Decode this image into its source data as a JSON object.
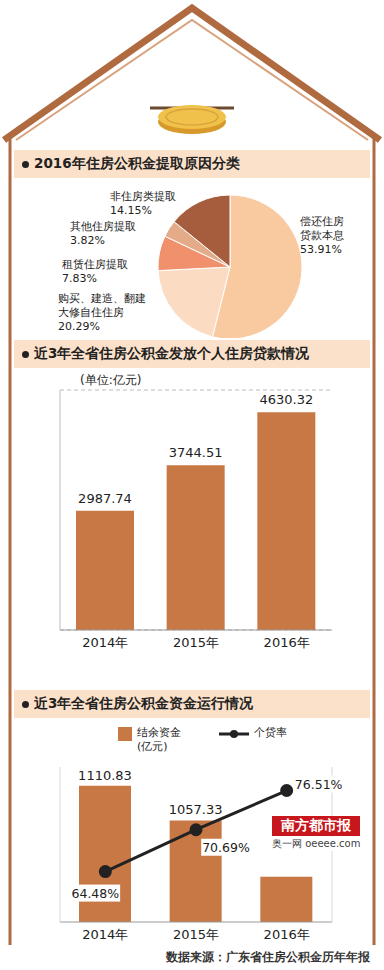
{
  "chart_data": [
    {
      "type": "pie",
      "title": "2016年住房公积金提取原因分类",
      "categories": [
        "偿还住房贷款本息",
        "购买、建造、翻建大修自住住房",
        "租赁住房提取",
        "其他住房提取",
        "非住房类提取"
      ],
      "values": [
        53.91,
        20.29,
        7.83,
        3.82,
        14.15
      ],
      "value_labels": [
        "53.91%",
        "20.29%",
        "7.83%",
        "3.82%",
        "14.15%"
      ],
      "colors": [
        "#f9c9a0",
        "#fbdcc2",
        "#f0906c",
        "#e3ab88",
        "#a65d3d"
      ],
      "data_labels": true
    },
    {
      "type": "bar",
      "title": "近3年全省住房公积金发放个人住房贷款情况",
      "subtitle": "(单位:亿元)",
      "categories": [
        "2014年",
        "2015年",
        "2016年"
      ],
      "values": [
        2987.74,
        3744.51,
        4630.32
      ],
      "color": "#c87845",
      "ylim": [
        1000,
        5000
      ],
      "yticks": [
        1000,
        1500,
        2000,
        2500,
        3000,
        3500,
        4000,
        4500,
        5000
      ],
      "grid": true,
      "data_labels": true,
      "tick_labels": "x"
    },
    {
      "type": "bar",
      "title": "近3年全省住房公积金资金运行情况",
      "categories": [
        "2014年",
        "2015年",
        "2016年"
      ],
      "series": [
        {
          "name": "结余资金(亿元)",
          "type": "bar",
          "color": "#c87845",
          "values": [
            1110.83,
            1057.33,
            970
          ],
          "value_labels": [
            "1110.83",
            "1057.33",
            null
          ]
        },
        {
          "name": "个贷率",
          "type": "line",
          "axis": "y2",
          "color": "#222222",
          "marker": "circle",
          "values": [
            64.48,
            70.69,
            76.51
          ],
          "value_labels": [
            "64.48%",
            "70.69%",
            "76.51%"
          ]
        }
      ],
      "ylim": [
        900,
        1140
      ],
      "yticks": [
        900,
        1140
      ],
      "y2lim": [
        57,
        80
      ],
      "y2ticks": [
        57,
        80
      ],
      "legend": "top",
      "data_labels": true,
      "tick_labels": "x"
    }
  ],
  "source": "数据来源：广东省住房公积金历年年报",
  "watermark": [
    "南方都市报",
    "奥一网 oeeee.com"
  ]
}
